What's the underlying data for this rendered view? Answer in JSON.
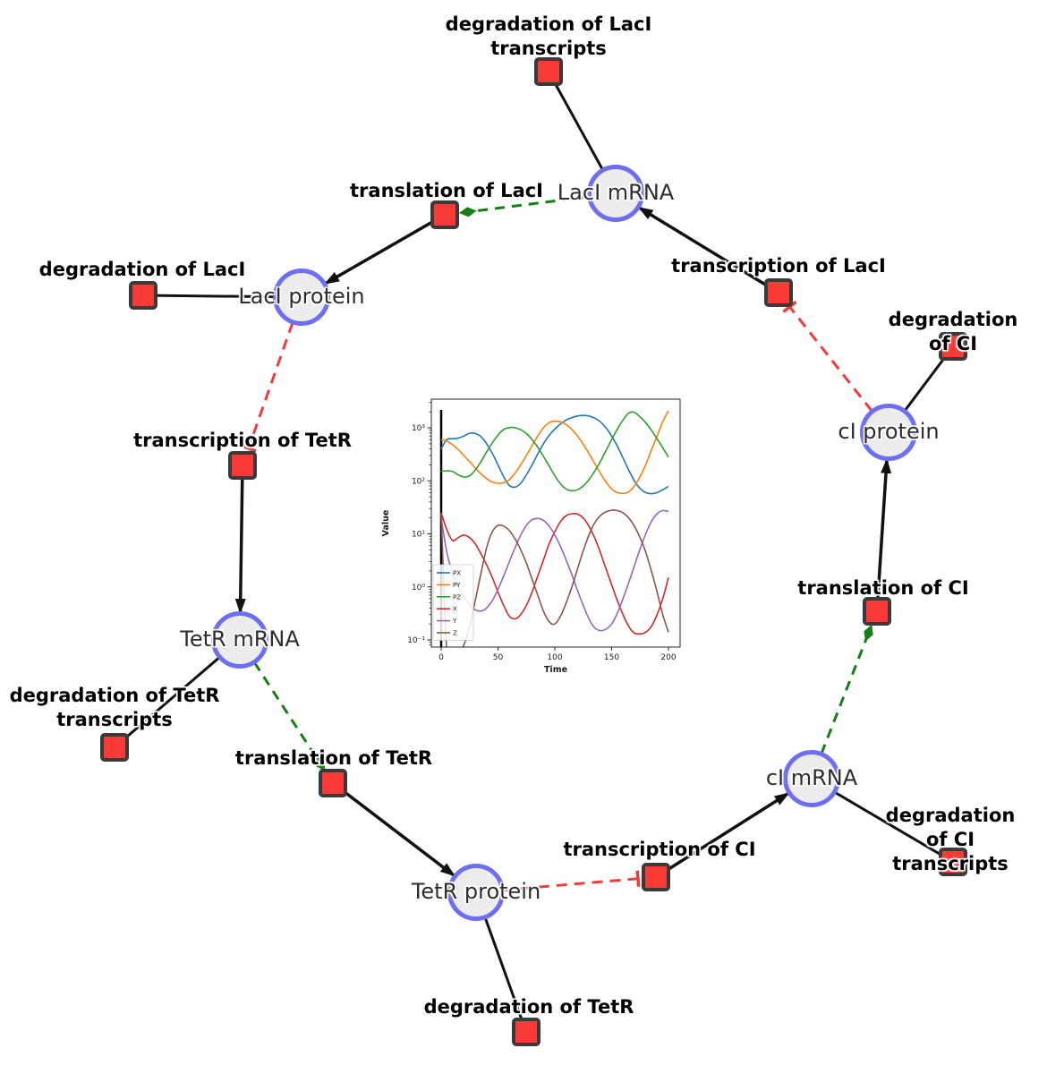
{
  "diagram": {
    "species": [
      {
        "label": "LacI mRNA"
      },
      {
        "label": "LacI protein"
      },
      {
        "label": "TetR mRNA"
      },
      {
        "label": "TetR protein"
      },
      {
        "label": "cI mRNA"
      },
      {
        "label": "cI protein"
      }
    ],
    "reactions": [
      {
        "label": "degradation of LacI\ntranscripts"
      },
      {
        "label": "translation of LacI"
      },
      {
        "label": "transcription of LacI"
      },
      {
        "label": "degradation of LacI"
      },
      {
        "label": "transcription of TetR"
      },
      {
        "label": "degradation of TetR\ntranscripts"
      },
      {
        "label": "translation of TetR"
      },
      {
        "label": "degradation of TetR"
      },
      {
        "label": "transcription of CI"
      },
      {
        "label": "degradation of CI\ntranscripts"
      },
      {
        "label": "translation of CI"
      },
      {
        "label": "degradation of CI"
      }
    ],
    "colors": {
      "species_fill": "#ececec",
      "species_border": "#6e6ef2",
      "reaction_fill": "#f93a36",
      "reaction_border": "#3a3a3a",
      "edge_black": "#111111",
      "edge_modifier_green": "#157f15",
      "edge_inhibition_red": "#f23b3b"
    }
  },
  "chart_data": {
    "type": "line",
    "title": "",
    "xlabel": "Time",
    "ylabel": "Value",
    "yscale": "log",
    "xlim": [
      -10,
      210
    ],
    "ylim": [
      0.073,
      3500
    ],
    "xticks": [
      "0",
      "50",
      "100",
      "150",
      "200"
    ],
    "xtick_values": [
      0,
      50,
      100,
      150,
      200
    ],
    "yticks": [
      "10⁻¹",
      "10⁰",
      "10¹",
      "10²",
      "10³"
    ],
    "ytick_values": [
      0.1,
      1,
      10,
      100,
      1000
    ],
    "legend_position": "lower left",
    "vline_at_zero": true,
    "x": [
      0,
      5,
      10,
      15,
      20,
      25,
      30,
      35,
      40,
      45,
      50,
      55,
      60,
      65,
      70,
      75,
      80,
      85,
      90,
      95,
      100,
      105,
      110,
      115,
      120,
      125,
      130,
      135,
      140,
      145,
      150,
      155,
      160,
      165,
      170,
      175,
      180,
      185,
      190,
      195,
      200
    ],
    "series": [
      {
        "name": "PX",
        "color": "#1f77b4",
        "values": [
          400,
          600,
          620,
          640,
          700,
          790,
          780,
          680,
          500,
          330,
          200,
          120,
          82,
          76,
          90,
          130,
          200,
          320,
          500,
          720,
          950,
          1180,
          1400,
          1560,
          1670,
          1710,
          1670,
          1530,
          1300,
          1000,
          700,
          450,
          270,
          160,
          100,
          72,
          60,
          57,
          60,
          68,
          78
        ]
      },
      {
        "name": "PY",
        "color": "#ff7f0e",
        "values": [
          600,
          560,
          480,
          390,
          300,
          230,
          175,
          135,
          110,
          95,
          90,
          92,
          105,
          140,
          200,
          300,
          460,
          700,
          1000,
          1250,
          1330,
          1300,
          1150,
          930,
          700,
          490,
          330,
          215,
          140,
          95,
          70,
          60,
          58,
          62,
          80,
          120,
          200,
          380,
          700,
          1300,
          2100
        ]
      },
      {
        "name": "PZ",
        "color": "#2ca02c",
        "values": [
          150,
          155,
          150,
          130,
          118,
          125,
          160,
          230,
          350,
          520,
          730,
          930,
          1010,
          1000,
          920,
          780,
          600,
          430,
          290,
          190,
          125,
          88,
          70,
          65,
          68,
          80,
          105,
          150,
          230,
          370,
          600,
          950,
          1400,
          1900,
          1950,
          1600,
          1250,
          900,
          620,
          420,
          280
        ]
      },
      {
        "name": "X",
        "color": "#d62728",
        "values": [
          25,
          12,
          7.5,
          8.5,
          9.5,
          8.5,
          6.5,
          4.2,
          2.6,
          1.5,
          0.8,
          0.45,
          0.28,
          0.25,
          0.3,
          0.45,
          0.8,
          1.6,
          3.2,
          6.5,
          11,
          17,
          22,
          24,
          23.5,
          20,
          14,
          8.5,
          4.5,
          2.2,
          1.1,
          0.55,
          0.3,
          0.18,
          0.135,
          0.13,
          0.14,
          0.18,
          0.3,
          0.6,
          1.5
        ]
      },
      {
        "name": "Y",
        "color": "#9467bd",
        "values": [
          20,
          4.5,
          1.8,
          1.0,
          0.65,
          0.45,
          0.37,
          0.35,
          0.4,
          0.55,
          0.9,
          1.6,
          3.0,
          5.5,
          9.5,
          14.5,
          18.5,
          19.5,
          18,
          14,
          9.5,
          5.8,
          3.2,
          1.7,
          0.85,
          0.45,
          0.25,
          0.17,
          0.15,
          0.16,
          0.2,
          0.32,
          0.6,
          1.2,
          2.5,
          5.2,
          10,
          17,
          24,
          27.5,
          26.5
        ]
      },
      {
        "name": "Z",
        "color": "#8c564b",
        "values": [
          25,
          0.06,
          0.04,
          0.05,
          0.08,
          0.18,
          0.55,
          1.8,
          5.5,
          11,
          14.5,
          14,
          11.5,
          8,
          5,
          2.8,
          1.4,
          0.7,
          0.35,
          0.22,
          0.2,
          0.28,
          0.5,
          1.0,
          2.2,
          4.8,
          9.5,
          16,
          22,
          26,
          28,
          27.5,
          25,
          20,
          14,
          8.5,
          4.5,
          2.0,
          0.8,
          0.3,
          0.14
        ]
      }
    ]
  }
}
